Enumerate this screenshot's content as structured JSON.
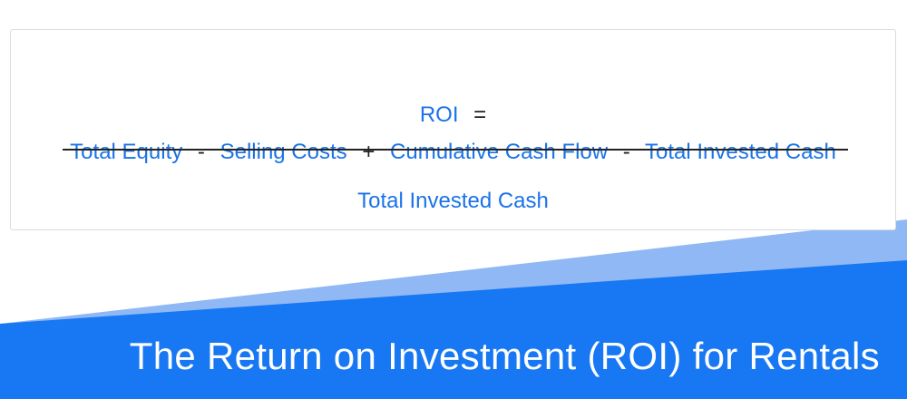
{
  "formula": {
    "lhs": "ROI",
    "equals": "=",
    "numerator": [
      {
        "term": "Total Equity",
        "op": "-"
      },
      {
        "term": "Selling Costs",
        "op": "+"
      },
      {
        "term": "Cumulative Cash Flow",
        "op": "-"
      },
      {
        "term": "Total Invested Cash",
        "op": ""
      }
    ],
    "denominator": "Total Invested Cash"
  },
  "banner": {
    "title": "The Return on Investment (ROI) for Rentals"
  },
  "colors": {
    "term_blue": "#1a73e8",
    "banner_blue": "#1877f2",
    "banner_light_blue": "#8fb8f5",
    "operator": "#222222"
  }
}
